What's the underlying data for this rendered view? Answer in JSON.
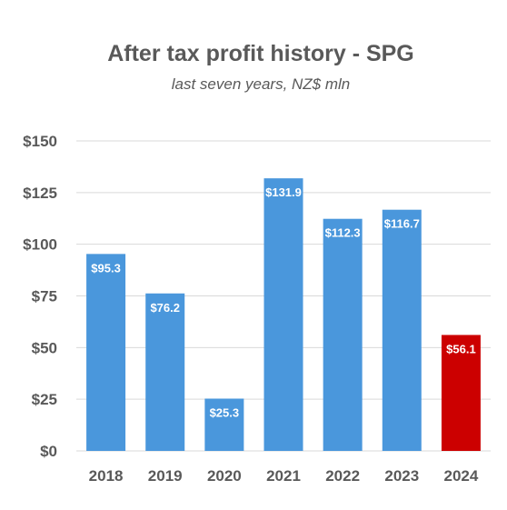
{
  "chart_data": {
    "type": "bar",
    "title": "After tax profit history - SPG",
    "subtitle": "last seven years, NZ$ mln",
    "categories": [
      "2018",
      "2019",
      "2020",
      "2021",
      "2022",
      "2023",
      "2024"
    ],
    "values": [
      95.3,
      76.2,
      25.3,
      131.9,
      112.3,
      116.7,
      56.1
    ],
    "data_labels": [
      "$95.3",
      "$76.2",
      "$25.3",
      "$131.9",
      "$112.3",
      "$116.7",
      "$56.1"
    ],
    "bar_colors": [
      "#4a97dc",
      "#4a97dc",
      "#4a97dc",
      "#4a97dc",
      "#4a97dc",
      "#4a97dc",
      "#cc0000"
    ],
    "ylim": [
      0,
      150
    ],
    "yticks": [
      0,
      25,
      50,
      75,
      100,
      125,
      150
    ],
    "ytick_labels": [
      "$0",
      "$25",
      "$50",
      "$75",
      "$100",
      "$125",
      "$150"
    ],
    "grid": true,
    "grid_color": "#d9d9d9",
    "text_color": "#595959",
    "label_color": "#ffffff"
  }
}
